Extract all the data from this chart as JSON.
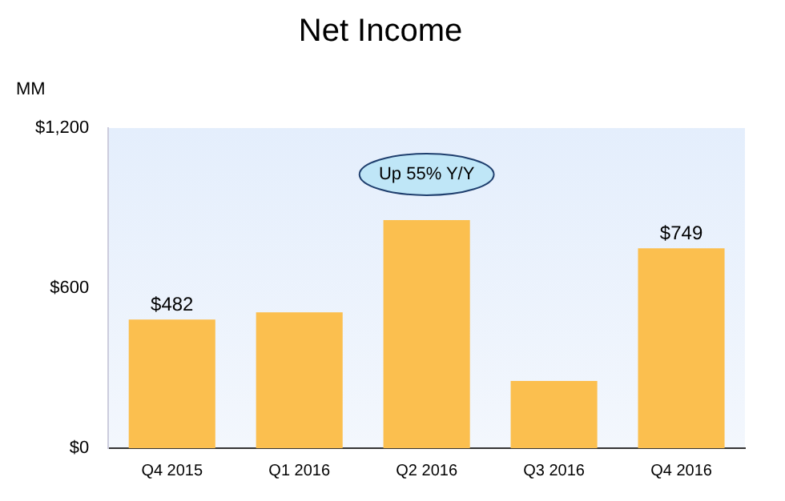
{
  "chart_data": {
    "type": "bar",
    "title": "Net Income",
    "ylabel": "MM",
    "categories": [
      "Q4 2015",
      "Q1 2016",
      "Q2 2016",
      "Q3 2016",
      "Q4 2016"
    ],
    "values": [
      482,
      509,
      855,
      252,
      749
    ],
    "color": "#fbbf4f",
    "value_labels": [
      "$482",
      null,
      null,
      null,
      "$749"
    ],
    "ylim": [
      0,
      1200
    ],
    "yticks": [
      {
        "value": 0,
        "label": "$0"
      },
      {
        "value": 600,
        "label": "$600"
      },
      {
        "value": 1200,
        "label": "$1,200"
      }
    ],
    "annotations": [
      "Up 55% Y/Y"
    ],
    "grid": false,
    "legend": false
  }
}
